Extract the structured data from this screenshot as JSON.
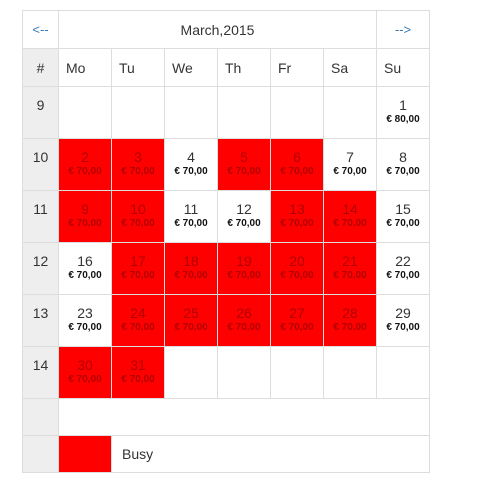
{
  "calendar": {
    "prev_label": "<--",
    "next_label": "-->",
    "month_title": "March,2015",
    "week_header": "#",
    "weekdays": [
      "Mo",
      "Tu",
      "We",
      "Th",
      "Fr",
      "Sa",
      "Su"
    ],
    "weeks": [
      {
        "week": "9",
        "days": [
          null,
          null,
          null,
          null,
          null,
          null,
          {
            "day": "1",
            "price": "€ 80,00",
            "busy": false
          }
        ]
      },
      {
        "week": "10",
        "days": [
          {
            "day": "2",
            "price": "€ 70,00",
            "busy": true
          },
          {
            "day": "3",
            "price": "€ 70,00",
            "busy": true
          },
          {
            "day": "4",
            "price": "€ 70,00",
            "busy": false
          },
          {
            "day": "5",
            "price": "€ 70,00",
            "busy": true
          },
          {
            "day": "6",
            "price": "€ 70,00",
            "busy": true
          },
          {
            "day": "7",
            "price": "€ 70,00",
            "busy": false
          },
          {
            "day": "8",
            "price": "€ 70,00",
            "busy": false
          }
        ]
      },
      {
        "week": "11",
        "days": [
          {
            "day": "9",
            "price": "€ 70,00",
            "busy": true
          },
          {
            "day": "10",
            "price": "€ 70,00",
            "busy": true
          },
          {
            "day": "11",
            "price": "€ 70,00",
            "busy": false
          },
          {
            "day": "12",
            "price": "€ 70,00",
            "busy": false
          },
          {
            "day": "13",
            "price": "€ 70,00",
            "busy": true
          },
          {
            "day": "14",
            "price": "€ 70,00",
            "busy": true
          },
          {
            "day": "15",
            "price": "€ 70,00",
            "busy": false
          }
        ]
      },
      {
        "week": "12",
        "days": [
          {
            "day": "16",
            "price": "€ 70,00",
            "busy": false
          },
          {
            "day": "17",
            "price": "€ 70,00",
            "busy": true
          },
          {
            "day": "18",
            "price": "€ 70,00",
            "busy": true
          },
          {
            "day": "19",
            "price": "€ 70,00",
            "busy": true
          },
          {
            "day": "20",
            "price": "€ 70,00",
            "busy": true
          },
          {
            "day": "21",
            "price": "€ 70,00",
            "busy": true
          },
          {
            "day": "22",
            "price": "€ 70,00",
            "busy": false
          }
        ]
      },
      {
        "week": "13",
        "days": [
          {
            "day": "23",
            "price": "€ 70,00",
            "busy": false
          },
          {
            "day": "24",
            "price": "€ 70,00",
            "busy": true
          },
          {
            "day": "25",
            "price": "€ 70,00",
            "busy": true
          },
          {
            "day": "26",
            "price": "€ 70,00",
            "busy": true
          },
          {
            "day": "27",
            "price": "€ 70,00",
            "busy": true
          },
          {
            "day": "28",
            "price": "€ 70,00",
            "busy": true
          },
          {
            "day": "29",
            "price": "€ 70,00",
            "busy": false
          }
        ]
      },
      {
        "week": "14",
        "days": [
          {
            "day": "30",
            "price": "€ 70,00",
            "busy": true
          },
          {
            "day": "31",
            "price": "€ 70,00",
            "busy": true
          },
          null,
          null,
          null,
          null,
          null
        ]
      }
    ],
    "legend": {
      "label": "Busy",
      "color": "#ff0000"
    },
    "colors": {
      "busy": "#ff0000",
      "header_bg": "#eeeeee",
      "link": "#337ab7"
    }
  }
}
